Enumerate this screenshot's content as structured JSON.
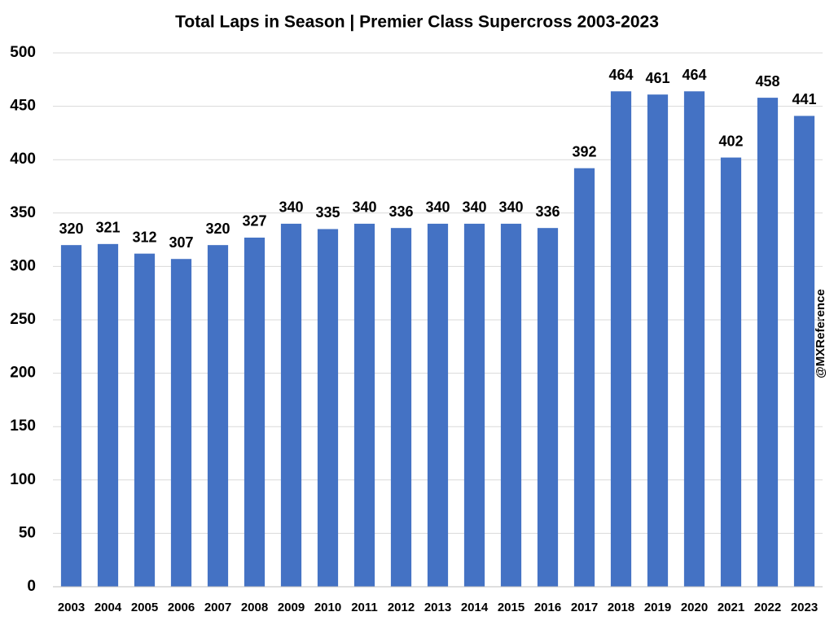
{
  "chart_data": {
    "type": "bar",
    "title": "Total Laps in Season | Premier Class Supercross 2003-2023",
    "annotation": "@MXReference",
    "categories": [
      "2003",
      "2004",
      "2005",
      "2006",
      "2007",
      "2008",
      "2009",
      "2010",
      "2011",
      "2012",
      "2013",
      "2014",
      "2015",
      "2016",
      "2017",
      "2018",
      "2019",
      "2020",
      "2021",
      "2022",
      "2023"
    ],
    "values": [
      320,
      321,
      312,
      307,
      320,
      327,
      340,
      335,
      340,
      336,
      340,
      340,
      340,
      336,
      392,
      464,
      461,
      464,
      402,
      458,
      441
    ],
    "color": "#4472c4",
    "ylim": [
      0,
      500
    ],
    "yticks": [
      0,
      50,
      100,
      150,
      200,
      250,
      300,
      350,
      400,
      450,
      500
    ],
    "grid": true
  }
}
